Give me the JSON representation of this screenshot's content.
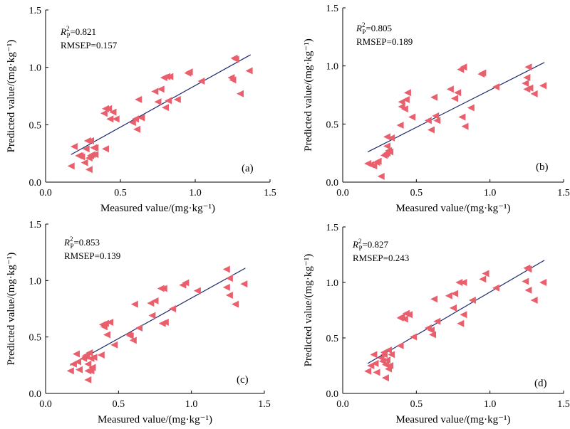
{
  "chart_data": [
    {
      "type": "scatter",
      "panel_label": "(a)",
      "annotation": {
        "r2_symbol": "R",
        "r2_sup": "2",
        "r2_sub": "P",
        "r2_value": "=0.821",
        "rmsep": "RMSEP=0.157"
      },
      "xlabel": "Measured value/(mg·kg⁻¹)",
      "ylabel": "Predicted value/(mg·kg⁻¹)",
      "xlim": [
        0.0,
        1.5
      ],
      "ylim": [
        0.0,
        1.5
      ],
      "xticks": [
        "0.0",
        "0.5",
        "1.0",
        "1.5"
      ],
      "yticks": [
        "0.0",
        "0.5",
        "1.0",
        "1.5"
      ],
      "fit_line": {
        "x": [
          0.17,
          1.37
        ],
        "y": [
          0.24,
          1.11
        ]
      },
      "points": [
        [
          0.17,
          0.14
        ],
        [
          0.19,
          0.31
        ],
        [
          0.22,
          0.23
        ],
        [
          0.23,
          0.23
        ],
        [
          0.24,
          0.22
        ],
        [
          0.26,
          0.17
        ],
        [
          0.27,
          0.29
        ],
        [
          0.28,
          0.36
        ],
        [
          0.29,
          0.21
        ],
        [
          0.29,
          0.11
        ],
        [
          0.3,
          0.23
        ],
        [
          0.3,
          0.36
        ],
        [
          0.31,
          0.24
        ],
        [
          0.32,
          0.3
        ],
        [
          0.33,
          0.3
        ],
        [
          0.33,
          0.24
        ],
        [
          0.39,
          0.6
        ],
        [
          0.4,
          0.29
        ],
        [
          0.4,
          0.64
        ],
        [
          0.42,
          0.64
        ],
        [
          0.43,
          0.55
        ],
        [
          0.45,
          0.61
        ],
        [
          0.47,
          0.55
        ],
        [
          0.58,
          0.52
        ],
        [
          0.6,
          0.55
        ],
        [
          0.61,
          0.46
        ],
        [
          0.62,
          0.72
        ],
        [
          0.64,
          0.56
        ],
        [
          0.73,
          0.79
        ],
        [
          0.75,
          0.7
        ],
        [
          0.77,
          0.81
        ],
        [
          0.79,
          0.91
        ],
        [
          0.8,
          0.65
        ],
        [
          0.81,
          0.92
        ],
        [
          0.82,
          0.71
        ],
        [
          0.83,
          0.92
        ],
        [
          0.88,
          0.72
        ],
        [
          0.95,
          0.95
        ],
        [
          0.96,
          0.96
        ],
        [
          1.04,
          0.88
        ],
        [
          1.24,
          0.91
        ],
        [
          1.25,
          0.89
        ],
        [
          1.26,
          1.08
        ],
        [
          1.27,
          1.07
        ],
        [
          1.3,
          0.77
        ],
        [
          1.36,
          0.97
        ]
      ]
    },
    {
      "type": "scatter",
      "panel_label": "(b)",
      "annotation": {
        "r2_symbol": "R",
        "r2_sup": "2",
        "r2_sub": "P",
        "r2_value": "=0.805",
        "rmsep": "RMSEP=0.189"
      },
      "xlabel": "Measured value/(mg·kg⁻¹)",
      "ylabel": "Predicted value/(mg·kg⁻¹)",
      "xlim": [
        0.0,
        1.5
      ],
      "ylim": [
        0.0,
        1.5
      ],
      "xticks": [
        "0.0",
        "0.5",
        "1.0",
        "1.5"
      ],
      "yticks": [
        "0.0",
        "0.5",
        "1.0",
        "1.5"
      ],
      "fit_line": {
        "x": [
          0.17,
          1.37
        ],
        "y": [
          0.26,
          1.03
        ]
      },
      "points": [
        [
          0.17,
          0.16
        ],
        [
          0.19,
          0.15
        ],
        [
          0.21,
          0.14
        ],
        [
          0.23,
          0.17
        ],
        [
          0.24,
          0.18
        ],
        [
          0.26,
          0.05
        ],
        [
          0.28,
          0.23
        ],
        [
          0.29,
          0.24
        ],
        [
          0.3,
          0.39
        ],
        [
          0.3,
          0.31
        ],
        [
          0.3,
          0.25
        ],
        [
          0.31,
          0.27
        ],
        [
          0.32,
          0.26
        ],
        [
          0.33,
          0.38
        ],
        [
          0.39,
          0.49
        ],
        [
          0.4,
          0.65
        ],
        [
          0.4,
          0.69
        ],
        [
          0.42,
          0.63
        ],
        [
          0.43,
          0.71
        ],
        [
          0.44,
          0.77
        ],
        [
          0.47,
          0.56
        ],
        [
          0.58,
          0.53
        ],
        [
          0.6,
          0.45
        ],
        [
          0.62,
          0.73
        ],
        [
          0.63,
          0.57
        ],
        [
          0.64,
          0.53
        ],
        [
          0.73,
          0.8
        ],
        [
          0.76,
          0.72
        ],
        [
          0.78,
          0.77
        ],
        [
          0.8,
          0.97
        ],
        [
          0.81,
          0.56
        ],
        [
          0.82,
          0.99
        ],
        [
          0.83,
          0.48
        ],
        [
          0.87,
          0.64
        ],
        [
          0.94,
          0.93
        ],
        [
          0.95,
          0.94
        ],
        [
          1.04,
          0.82
        ],
        [
          1.24,
          0.85
        ],
        [
          1.25,
          0.8
        ],
        [
          1.25,
          0.9
        ],
        [
          1.26,
          0.99
        ],
        [
          1.27,
          0.81
        ],
        [
          1.3,
          0.76
        ],
        [
          1.36,
          0.83
        ]
      ]
    },
    {
      "type": "scatter",
      "panel_label": "(c)",
      "annotation": {
        "r2_symbol": "R",
        "r2_sup": "2",
        "r2_sub": "P",
        "r2_value": "=0.853",
        "rmsep": "RMSEP=0.139"
      },
      "xlabel": "Measured value/(mg·kg⁻¹)",
      "ylabel": "Predicted value/(mg·kg⁻¹)",
      "xlim": [
        0.0,
        1.5
      ],
      "ylim": [
        0.0,
        1.5
      ],
      "xticks": [
        "0.0",
        "0.5",
        "1.0",
        "1.5"
      ],
      "yticks": [
        "0.0",
        "0.5",
        "1.0",
        "1.5"
      ],
      "fit_line": {
        "x": [
          0.17,
          1.37
        ],
        "y": [
          0.25,
          1.11
        ]
      },
      "points": [
        [
          0.17,
          0.2
        ],
        [
          0.19,
          0.26
        ],
        [
          0.21,
          0.35
        ],
        [
          0.22,
          0.28
        ],
        [
          0.23,
          0.21
        ],
        [
          0.26,
          0.31
        ],
        [
          0.27,
          0.33
        ],
        [
          0.28,
          0.34
        ],
        [
          0.29,
          0.26
        ],
        [
          0.29,
          0.2
        ],
        [
          0.29,
          0.12
        ],
        [
          0.3,
          0.36
        ],
        [
          0.31,
          0.2
        ],
        [
          0.31,
          0.31
        ],
        [
          0.32,
          0.23
        ],
        [
          0.33,
          0.32
        ],
        [
          0.38,
          0.34
        ],
        [
          0.39,
          0.61
        ],
        [
          0.4,
          0.59
        ],
        [
          0.41,
          0.62
        ],
        [
          0.42,
          0.52
        ],
        [
          0.44,
          0.63
        ],
        [
          0.47,
          0.43
        ],
        [
          0.57,
          0.52
        ],
        [
          0.58,
          0.51
        ],
        [
          0.6,
          0.47
        ],
        [
          0.61,
          0.79
        ],
        [
          0.64,
          0.58
        ],
        [
          0.72,
          0.8
        ],
        [
          0.73,
          0.69
        ],
        [
          0.75,
          0.82
        ],
        [
          0.79,
          0.93
        ],
        [
          0.8,
          0.62
        ],
        [
          0.81,
          0.93
        ],
        [
          0.82,
          0.63
        ],
        [
          0.87,
          0.75
        ],
        [
          0.94,
          0.96
        ],
        [
          0.96,
          0.98
        ],
        [
          1.04,
          0.91
        ],
        [
          1.24,
          0.94
        ],
        [
          1.24,
          1.1
        ],
        [
          1.26,
          1.02
        ],
        [
          1.26,
          0.87
        ],
        [
          1.3,
          0.79
        ],
        [
          1.36,
          0.97
        ]
      ]
    },
    {
      "type": "scatter",
      "panel_label": "(d)",
      "annotation": {
        "r2_symbol": "R",
        "r2_sup": "2",
        "r2_sub": "P",
        "r2_value": "=0.827",
        "rmsep": "RMSEP=0.243"
      },
      "xlabel": "Measured value/(mg·kg⁻¹)",
      "ylabel": "Predicted value/(mg·kg⁻¹)",
      "xlim": [
        0.0,
        1.5
      ],
      "ylim": [
        0.0,
        1.5
      ],
      "xticks": [
        "0.0",
        "0.5",
        "1.0",
        "1.5"
      ],
      "yticks": [
        "0.0",
        "0.5",
        "1.0",
        "1.5"
      ],
      "fit_line": {
        "x": [
          0.17,
          1.37
        ],
        "y": [
          0.27,
          1.2
        ]
      },
      "points": [
        [
          0.17,
          0.2
        ],
        [
          0.19,
          0.25
        ],
        [
          0.21,
          0.35
        ],
        [
          0.22,
          0.27
        ],
        [
          0.23,
          0.19
        ],
        [
          0.26,
          0.32
        ],
        [
          0.27,
          0.29
        ],
        [
          0.28,
          0.35
        ],
        [
          0.28,
          0.37
        ],
        [
          0.29,
          0.26
        ],
        [
          0.29,
          0.14
        ],
        [
          0.3,
          0.3
        ],
        [
          0.31,
          0.22
        ],
        [
          0.31,
          0.39
        ],
        [
          0.32,
          0.25
        ],
        [
          0.33,
          0.35
        ],
        [
          0.39,
          0.43
        ],
        [
          0.39,
          0.68
        ],
        [
          0.4,
          0.69
        ],
        [
          0.42,
          0.67
        ],
        [
          0.43,
          0.72
        ],
        [
          0.45,
          0.71
        ],
        [
          0.48,
          0.51
        ],
        [
          0.58,
          0.59
        ],
        [
          0.6,
          0.57
        ],
        [
          0.61,
          0.53
        ],
        [
          0.62,
          0.85
        ],
        [
          0.64,
          0.65
        ],
        [
          0.72,
          0.88
        ],
        [
          0.75,
          0.77
        ],
        [
          0.76,
          0.9
        ],
        [
          0.79,
          1.0
        ],
        [
          0.8,
          0.63
        ],
        [
          0.82,
          1.0
        ],
        [
          0.82,
          0.71
        ],
        [
          0.88,
          0.84
        ],
        [
          0.95,
          1.03
        ],
        [
          0.97,
          1.08
        ],
        [
          1.04,
          0.95
        ],
        [
          1.24,
          1.01
        ],
        [
          1.25,
          1.13
        ],
        [
          1.26,
          1.12
        ],
        [
          1.26,
          0.93
        ],
        [
          1.3,
          0.84
        ],
        [
          1.36,
          1.0
        ]
      ]
    }
  ],
  "style": {
    "marker_color": "#ea5f6c",
    "line_color": "#1c2a6e",
    "axis_color": "#000000"
  }
}
